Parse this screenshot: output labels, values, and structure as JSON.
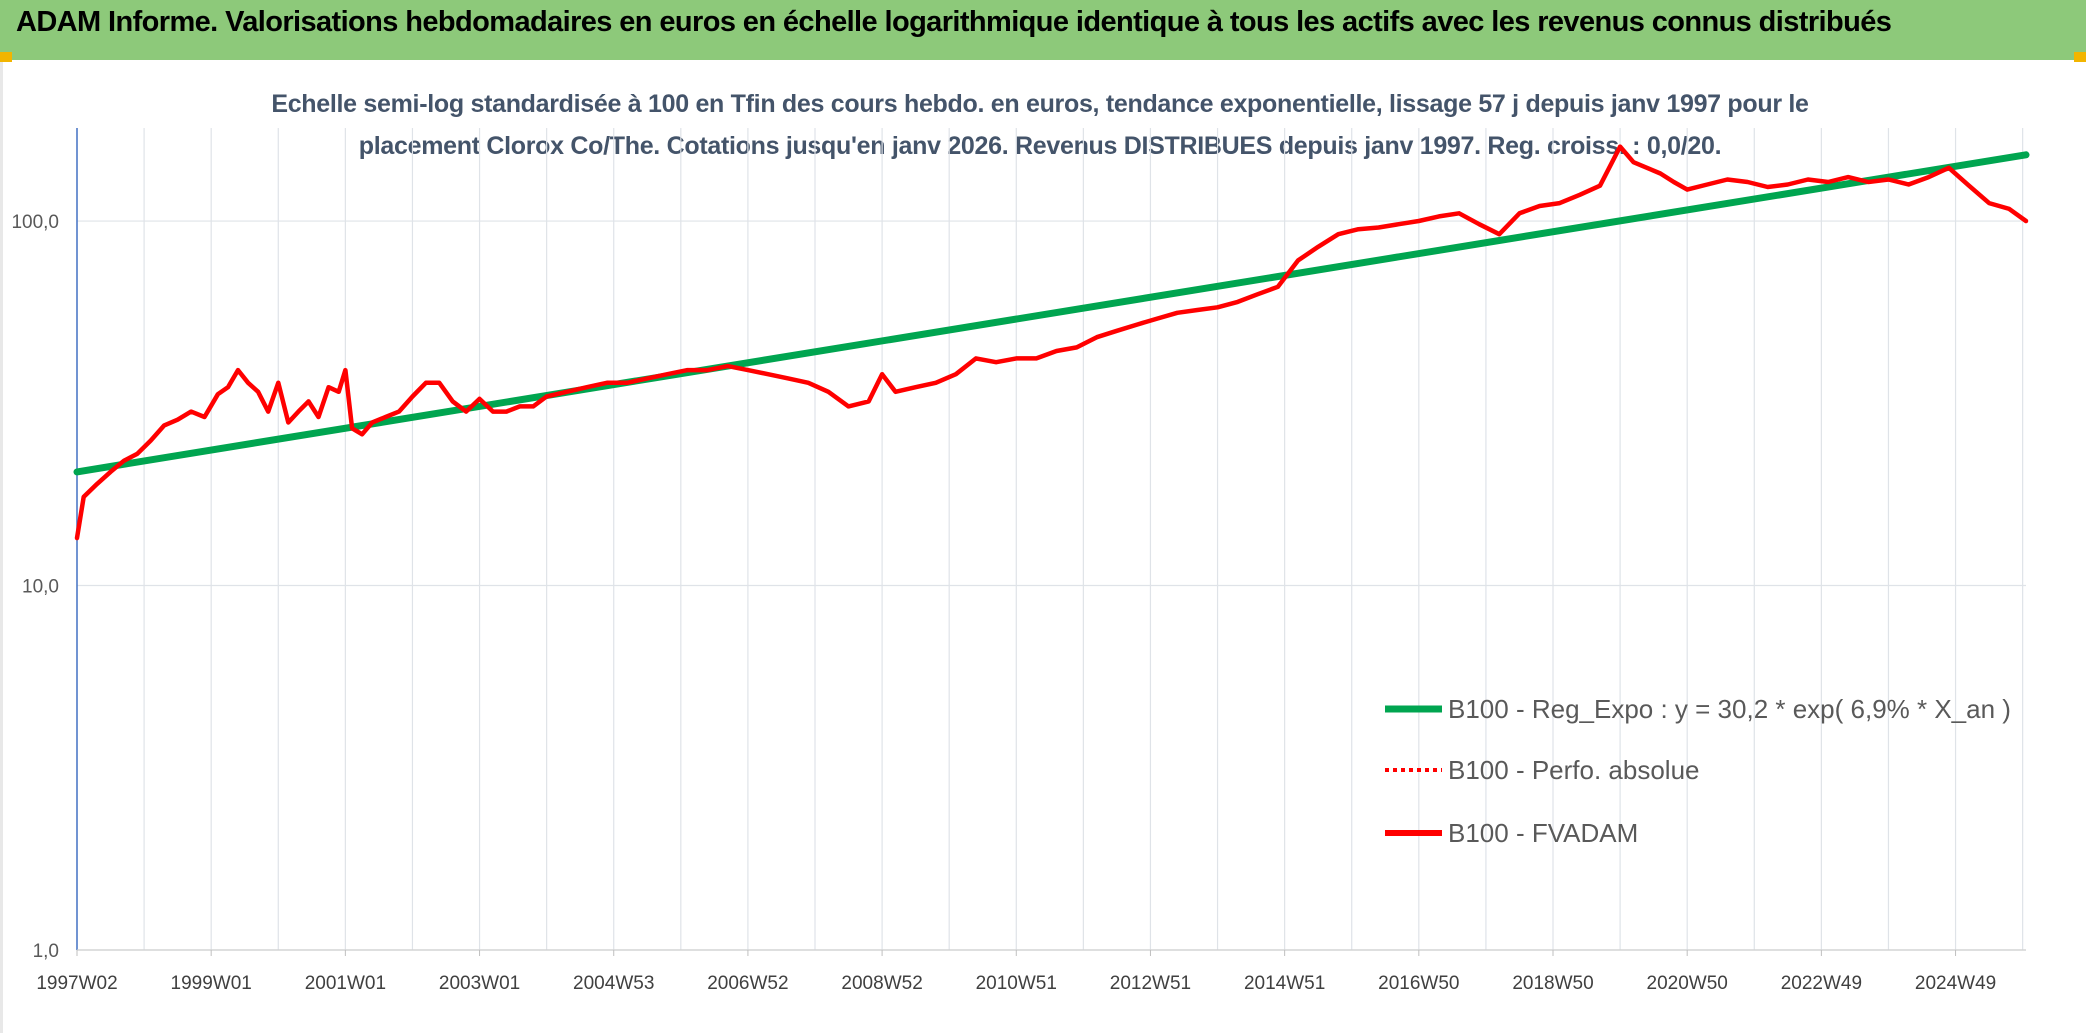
{
  "header": {
    "title": "ADAM Informe. Valorisations hebdomadaires en euros en échelle logarithmique identique à tous les actifs avec les revenus connus distribués"
  },
  "chart_data": {
    "type": "line",
    "title": "Echelle semi-log standardisée à 100 en Tfin des cours hebdo. en euros, tendance exponentielle, lissage 57 j depuis janv 1997 pour le placement Clorox Co/The. Cotations jusqu'en janv 2026. Revenus DISTRIBUES depuis janv 1997. Reg. croiss. : 0,0/20.",
    "title_lines": [
      "Echelle semi-log standardisée à 100 en Tfin des cours hebdo. en euros, tendance exponentielle, lissage 57 j depuis janv 1997 pour le",
      "placement Clorox Co/The. Cotations jusqu'en janv 2026. Revenus DISTRIBUES depuis janv 1997. Reg. croiss. : 0,0/20."
    ],
    "y_scale": "log",
    "ylim": [
      1,
      180
    ],
    "yticks": [
      1,
      10,
      100
    ],
    "ytick_labels": [
      "1,0",
      "10,0",
      "100,0"
    ],
    "xlim": [
      1997.0,
      2026.05
    ],
    "xtick_labels": [
      "1997W02",
      "1999W01",
      "2001W01",
      "2003W01",
      "2004W53",
      "2006W52",
      "2008W52",
      "2010W51",
      "2012W51",
      "2014W51",
      "2016W50",
      "2018W50",
      "2020W50",
      "2022W49",
      "2024W49"
    ],
    "xtick_positions": [
      1997.0,
      1999.0,
      2001.0,
      2003.0,
      2005.0,
      2007.0,
      2009.0,
      2011.0,
      2013.0,
      2015.0,
      2017.0,
      2019.0,
      2021.0,
      2023.0,
      2025.0
    ],
    "grid": "vertical and horizontal",
    "legend_position": "bottom-right",
    "series": [
      {
        "name": "B100 - Reg_Expo : y = 30,2 * exp( 6,9% *  X_an )",
        "color": "#00a550",
        "style": "solid",
        "x": [
          1997.0,
          2026.05
        ],
        "y": [
          20.5,
          152
        ]
      },
      {
        "name": "B100 - Perfo. absolue",
        "color": "#ff0000",
        "style": "dotted",
        "x": [],
        "y": []
      },
      {
        "name": "B100 - FVADAM",
        "color": "#ff0000",
        "style": "solid",
        "x": [
          1997.0,
          1997.1,
          1997.3,
          1997.5,
          1997.7,
          1997.9,
          1998.1,
          1998.3,
          1998.5,
          1998.7,
          1998.9,
          1999.1,
          1999.25,
          1999.4,
          1999.55,
          1999.7,
          1999.85,
          2000.0,
          2000.15,
          2000.3,
          2000.45,
          2000.6,
          2000.75,
          2000.9,
          2001.0,
          2001.1,
          2001.25,
          2001.4,
          2001.6,
          2001.8,
          2002.0,
          2002.2,
          2002.4,
          2002.6,
          2002.8,
          2003.0,
          2003.2,
          2003.4,
          2003.6,
          2003.8,
          2004.0,
          2004.3,
          2004.6,
          2004.9,
          2005.2,
          2005.5,
          2005.8,
          2006.1,
          2006.4,
          2006.7,
          2007.0,
          2007.3,
          2007.6,
          2007.9,
          2008.2,
          2008.5,
          2008.8,
          2009.0,
          2009.2,
          2009.5,
          2009.8,
          2010.1,
          2010.4,
          2010.7,
          2011.0,
          2011.3,
          2011.6,
          2011.9,
          2012.2,
          2012.5,
          2012.8,
          2013.1,
          2013.4,
          2013.7,
          2014.0,
          2014.3,
          2014.6,
          2014.9,
          2015.2,
          2015.5,
          2015.8,
          2016.1,
          2016.4,
          2016.7,
          2017.0,
          2017.3,
          2017.6,
          2017.9,
          2018.2,
          2018.5,
          2018.8,
          2019.1,
          2019.4,
          2019.7,
          2020.0,
          2020.2,
          2020.4,
          2020.6,
          2020.8,
          2021.0,
          2021.3,
          2021.6,
          2021.9,
          2022.2,
          2022.5,
          2022.8,
          2023.1,
          2023.4,
          2023.7,
          2024.0,
          2024.3,
          2024.6,
          2024.9,
          2025.2,
          2025.5,
          2025.8,
          2026.05
        ],
        "y": [
          13.5,
          17.5,
          19,
          20.5,
          22,
          23,
          25,
          27.5,
          28.5,
          30,
          29,
          33.5,
          35,
          39,
          36,
          34,
          30,
          36,
          28,
          30,
          32,
          29,
          35,
          34,
          39,
          27,
          26,
          28,
          29,
          30,
          33,
          36,
          36,
          32,
          30,
          32.5,
          30,
          30,
          31,
          31,
          33,
          34,
          35,
          36,
          36,
          37,
          38,
          39,
          39,
          40,
          39,
          38,
          37,
          36,
          34,
          31,
          32,
          38,
          34,
          35,
          36,
          38,
          42,
          41,
          42,
          42,
          44,
          45,
          48,
          50,
          52,
          54,
          56,
          57,
          58,
          60,
          63,
          66,
          78,
          85,
          92,
          95,
          96,
          98,
          100,
          103,
          105,
          98,
          92,
          105,
          110,
          112,
          118,
          125,
          160,
          145,
          140,
          135,
          128,
          122,
          126,
          130,
          128,
          124,
          126,
          130,
          128,
          132,
          128,
          130,
          126,
          132,
          140,
          125,
          112,
          108,
          100
        ]
      }
    ]
  }
}
